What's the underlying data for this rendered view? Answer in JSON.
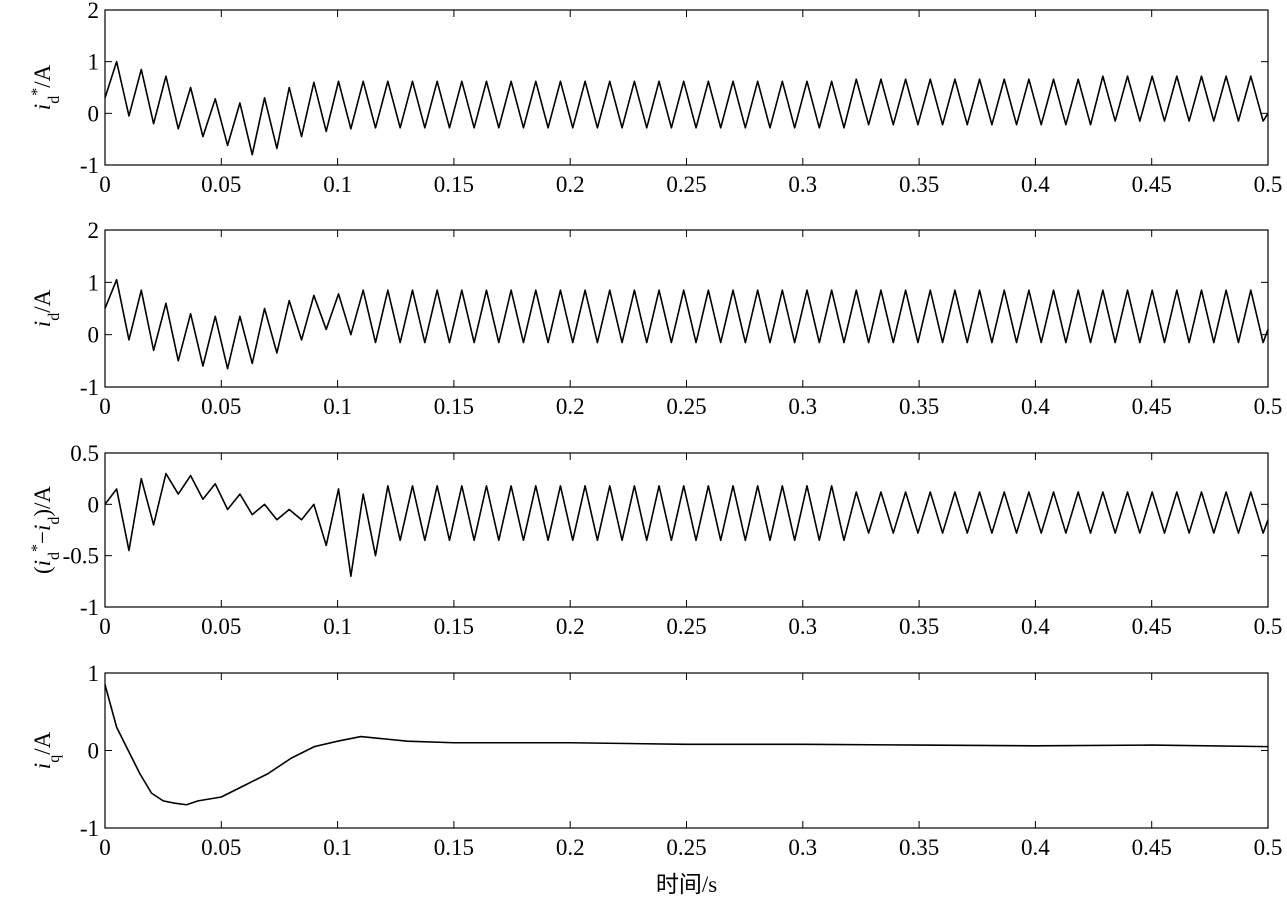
{
  "chart_data": [
    {
      "type": "line",
      "color": "#000000",
      "ylabel": [
        {
          "text": "i",
          "style": "italic"
        },
        {
          "text": "d",
          "style": "sub"
        },
        {
          "text": "*",
          "style": "sup"
        },
        {
          "text": "/A",
          "style": "normal"
        }
      ],
      "xlim": [
        0,
        0.5
      ],
      "xticks": [
        0,
        0.05,
        0.1,
        0.15,
        0.2,
        0.25,
        0.3,
        0.35,
        0.4,
        0.45,
        0.5
      ],
      "ylim": [
        -1,
        2
      ],
      "yticks": [
        -1,
        0,
        1,
        2
      ],
      "x": [
        0,
        0.005,
        0.0103,
        0.0156,
        0.0209,
        0.0262,
        0.0315,
        0.0368,
        0.0421,
        0.0474,
        0.0527,
        0.058,
        0.0633,
        0.0686,
        0.0739,
        0.0792,
        0.0845,
        0.0898,
        0.0951,
        0.1004,
        0.1057,
        0.111,
        0.1163,
        0.1216,
        0.1269,
        0.1322,
        0.1375,
        0.1428,
        0.1481,
        0.1534,
        0.1587,
        0.164,
        0.1693,
        0.1746,
        0.1799,
        0.1852,
        0.1905,
        0.1958,
        0.2011,
        0.2064,
        0.2117,
        0.217,
        0.2223,
        0.2276,
        0.2329,
        0.2382,
        0.2435,
        0.2488,
        0.2541,
        0.2594,
        0.2647,
        0.27,
        0.2753,
        0.2806,
        0.2859,
        0.2912,
        0.2965,
        0.3018,
        0.3071,
        0.3124,
        0.3177,
        0.323,
        0.3283,
        0.3336,
        0.3389,
        0.3442,
        0.3495,
        0.3548,
        0.3601,
        0.3654,
        0.3707,
        0.376,
        0.3813,
        0.3866,
        0.3919,
        0.3972,
        0.4025,
        0.4078,
        0.4131,
        0.4184,
        0.4237,
        0.429,
        0.4343,
        0.4396,
        0.4449,
        0.4502,
        0.4555,
        0.4608,
        0.4661,
        0.4714,
        0.4767,
        0.482,
        0.4873,
        0.4926,
        0.4979,
        0.5
      ],
      "values": [
        0.3,
        1.0,
        -0.05,
        0.85,
        -0.2,
        0.72,
        -0.3,
        0.5,
        -0.45,
        0.28,
        -0.62,
        0.2,
        -0.8,
        0.3,
        -0.68,
        0.5,
        -0.45,
        0.6,
        -0.35,
        0.62,
        -0.3,
        0.62,
        -0.28,
        0.62,
        -0.28,
        0.62,
        -0.28,
        0.62,
        -0.28,
        0.62,
        -0.28,
        0.62,
        -0.28,
        0.62,
        -0.28,
        0.62,
        -0.28,
        0.62,
        -0.28,
        0.62,
        -0.28,
        0.62,
        -0.28,
        0.62,
        -0.28,
        0.62,
        -0.28,
        0.62,
        -0.28,
        0.62,
        -0.28,
        0.62,
        -0.28,
        0.62,
        -0.28,
        0.62,
        -0.28,
        0.62,
        -0.28,
        0.62,
        -0.28,
        0.66,
        -0.22,
        0.66,
        -0.22,
        0.66,
        -0.22,
        0.66,
        -0.22,
        0.66,
        -0.22,
        0.66,
        -0.22,
        0.66,
        -0.22,
        0.66,
        -0.22,
        0.66,
        -0.22,
        0.66,
        -0.22,
        0.72,
        -0.15,
        0.72,
        -0.15,
        0.72,
        -0.15,
        0.72,
        -0.15,
        0.72,
        -0.15,
        0.72,
        -0.15,
        0.72,
        -0.15,
        0.0
      ]
    },
    {
      "type": "line",
      "color": "#000000",
      "ylabel": [
        {
          "text": "i",
          "style": "italic"
        },
        {
          "text": "d",
          "style": "sub"
        },
        {
          "text": "/A",
          "style": "normal"
        }
      ],
      "xlim": [
        0,
        0.5
      ],
      "xticks": [
        0,
        0.05,
        0.1,
        0.15,
        0.2,
        0.25,
        0.3,
        0.35,
        0.4,
        0.45,
        0.5
      ],
      "ylim": [
        -1,
        2
      ],
      "yticks": [
        -1,
        0,
        1,
        2
      ],
      "x": [
        0,
        0.005,
        0.0103,
        0.0156,
        0.0209,
        0.0262,
        0.0315,
        0.0368,
        0.0421,
        0.0474,
        0.0527,
        0.058,
        0.0633,
        0.0686,
        0.0739,
        0.0792,
        0.0845,
        0.0898,
        0.0951,
        0.1004,
        0.1057,
        0.111,
        0.1163,
        0.1216,
        0.1269,
        0.1322,
        0.1375,
        0.1428,
        0.1481,
        0.1534,
        0.1587,
        0.164,
        0.1693,
        0.1746,
        0.1799,
        0.1852,
        0.1905,
        0.1958,
        0.2011,
        0.2064,
        0.2117,
        0.217,
        0.2223,
        0.2276,
        0.2329,
        0.2382,
        0.2435,
        0.2488,
        0.2541,
        0.2594,
        0.2647,
        0.27,
        0.2753,
        0.2806,
        0.2859,
        0.2912,
        0.2965,
        0.3018,
        0.3071,
        0.3124,
        0.3177,
        0.323,
        0.3283,
        0.3336,
        0.3389,
        0.3442,
        0.3495,
        0.3548,
        0.3601,
        0.3654,
        0.3707,
        0.376,
        0.3813,
        0.3866,
        0.3919,
        0.3972,
        0.4025,
        0.4078,
        0.4131,
        0.4184,
        0.4237,
        0.429,
        0.4343,
        0.4396,
        0.4449,
        0.4502,
        0.4555,
        0.4608,
        0.4661,
        0.4714,
        0.4767,
        0.482,
        0.4873,
        0.4926,
        0.4979,
        0.5
      ],
      "values": [
        0.5,
        1.05,
        -0.1,
        0.85,
        -0.3,
        0.6,
        -0.5,
        0.4,
        -0.6,
        0.35,
        -0.65,
        0.35,
        -0.55,
        0.5,
        -0.35,
        0.65,
        -0.1,
        0.75,
        0.1,
        0.78,
        0.0,
        0.85,
        -0.15,
        0.85,
        -0.15,
        0.85,
        -0.15,
        0.85,
        -0.15,
        0.85,
        -0.15,
        0.85,
        -0.15,
        0.85,
        -0.15,
        0.85,
        -0.15,
        0.85,
        -0.15,
        0.85,
        -0.15,
        0.85,
        -0.15,
        0.85,
        -0.15,
        0.85,
        -0.15,
        0.85,
        -0.15,
        0.85,
        -0.15,
        0.85,
        -0.15,
        0.85,
        -0.15,
        0.85,
        -0.15,
        0.85,
        -0.15,
        0.85,
        -0.15,
        0.85,
        -0.15,
        0.85,
        -0.15,
        0.85,
        -0.15,
        0.85,
        -0.15,
        0.85,
        -0.15,
        0.85,
        -0.15,
        0.85,
        -0.15,
        0.85,
        -0.15,
        0.85,
        -0.15,
        0.85,
        -0.15,
        0.85,
        -0.15,
        0.85,
        -0.15,
        0.85,
        -0.15,
        0.85,
        -0.15,
        0.85,
        -0.15,
        0.85,
        -0.15,
        0.85,
        -0.15,
        0.1
      ]
    },
    {
      "type": "line",
      "color": "#000000",
      "ylabel": [
        {
          "text": "(",
          "style": "normal"
        },
        {
          "text": "i",
          "style": "italic"
        },
        {
          "text": "d",
          "style": "sub"
        },
        {
          "text": "*",
          "style": "sup"
        },
        {
          "text": "−",
          "style": "normal"
        },
        {
          "text": "i",
          "style": "italic"
        },
        {
          "text": "d",
          "style": "sub"
        },
        {
          "text": ")/A",
          "style": "normal"
        }
      ],
      "xlim": [
        0,
        0.5
      ],
      "xticks": [
        0,
        0.05,
        0.1,
        0.15,
        0.2,
        0.25,
        0.3,
        0.35,
        0.4,
        0.45,
        0.5
      ],
      "ylim": [
        -1,
        0.5
      ],
      "yticks": [
        -1,
        -0.5,
        0,
        0.5
      ],
      "x": [
        0,
        0.005,
        0.0103,
        0.0156,
        0.0209,
        0.0262,
        0.0315,
        0.0368,
        0.0421,
        0.0474,
        0.0527,
        0.058,
        0.0633,
        0.0686,
        0.0739,
        0.0792,
        0.0845,
        0.0898,
        0.0951,
        0.1004,
        0.1057,
        0.111,
        0.1163,
        0.1216,
        0.1269,
        0.1322,
        0.1375,
        0.1428,
        0.1481,
        0.1534,
        0.1587,
        0.164,
        0.1693,
        0.1746,
        0.1799,
        0.1852,
        0.1905,
        0.1958,
        0.2011,
        0.2064,
        0.2117,
        0.217,
        0.2223,
        0.2276,
        0.2329,
        0.2382,
        0.2435,
        0.2488,
        0.2541,
        0.2594,
        0.2647,
        0.27,
        0.2753,
        0.2806,
        0.2859,
        0.2912,
        0.2965,
        0.3018,
        0.3071,
        0.3124,
        0.3177,
        0.323,
        0.3283,
        0.3336,
        0.3389,
        0.3442,
        0.3495,
        0.3548,
        0.3601,
        0.3654,
        0.3707,
        0.376,
        0.3813,
        0.3866,
        0.3919,
        0.3972,
        0.4025,
        0.4078,
        0.4131,
        0.4184,
        0.4237,
        0.429,
        0.4343,
        0.4396,
        0.4449,
        0.4502,
        0.4555,
        0.4608,
        0.4661,
        0.4714,
        0.4767,
        0.482,
        0.4873,
        0.4926,
        0.4979,
        0.5
      ],
      "values": [
        0.0,
        0.15,
        -0.45,
        0.25,
        -0.2,
        0.3,
        0.1,
        0.28,
        0.05,
        0.2,
        -0.05,
        0.1,
        -0.1,
        0.0,
        -0.15,
        -0.05,
        -0.15,
        0.0,
        -0.4,
        0.15,
        -0.7,
        0.1,
        -0.5,
        0.18,
        -0.35,
        0.18,
        -0.35,
        0.18,
        -0.35,
        0.18,
        -0.35,
        0.18,
        -0.35,
        0.18,
        -0.35,
        0.18,
        -0.35,
        0.18,
        -0.35,
        0.18,
        -0.35,
        0.18,
        -0.35,
        0.18,
        -0.35,
        0.18,
        -0.35,
        0.18,
        -0.35,
        0.18,
        -0.35,
        0.18,
        -0.35,
        0.18,
        -0.35,
        0.18,
        -0.35,
        0.18,
        -0.35,
        0.18,
        -0.35,
        0.12,
        -0.28,
        0.12,
        -0.28,
        0.12,
        -0.28,
        0.12,
        -0.28,
        0.12,
        -0.28,
        0.12,
        -0.28,
        0.12,
        -0.28,
        0.12,
        -0.28,
        0.12,
        -0.28,
        0.12,
        -0.28,
        0.12,
        -0.28,
        0.12,
        -0.28,
        0.12,
        -0.28,
        0.12,
        -0.28,
        0.12,
        -0.28,
        0.12,
        -0.28,
        0.12,
        -0.28,
        -0.15
      ]
    },
    {
      "type": "line",
      "color": "#000000",
      "ylabel": [
        {
          "text": "i",
          "style": "italic"
        },
        {
          "text": "q",
          "style": "sub"
        },
        {
          "text": "/A",
          "style": "normal"
        }
      ],
      "xlabel": "时间/s",
      "xlim": [
        0,
        0.5
      ],
      "xticks": [
        0,
        0.05,
        0.1,
        0.15,
        0.2,
        0.25,
        0.3,
        0.35,
        0.4,
        0.45,
        0.5
      ],
      "ylim": [
        -1,
        1
      ],
      "yticks": [
        -1,
        0,
        1
      ],
      "x": [
        0,
        0.005,
        0.01,
        0.015,
        0.02,
        0.025,
        0.03,
        0.035,
        0.04,
        0.05,
        0.06,
        0.07,
        0.08,
        0.09,
        0.1,
        0.11,
        0.12,
        0.13,
        0.15,
        0.2,
        0.25,
        0.3,
        0.35,
        0.4,
        0.45,
        0.5
      ],
      "values": [
        0.85,
        0.3,
        0.0,
        -0.3,
        -0.55,
        -0.65,
        -0.68,
        -0.7,
        -0.65,
        -0.6,
        -0.45,
        -0.3,
        -0.1,
        0.05,
        0.12,
        0.18,
        0.15,
        0.12,
        0.1,
        0.1,
        0.08,
        0.08,
        0.07,
        0.06,
        0.07,
        0.05
      ]
    }
  ]
}
